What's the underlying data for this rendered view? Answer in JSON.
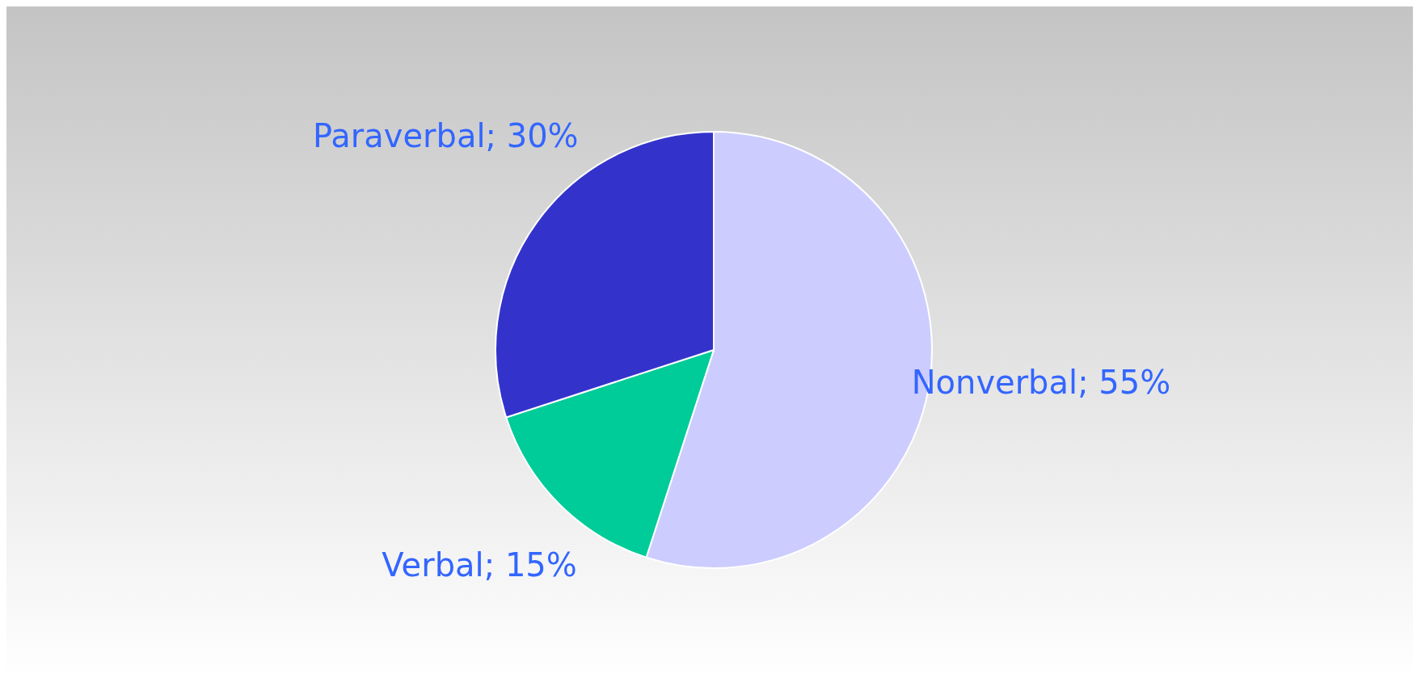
{
  "chart_data": {
    "type": "pie",
    "categories": [
      "Nonverbal",
      "Verbal",
      "Paraverbal"
    ],
    "values": [
      55,
      15,
      30
    ],
    "colors": [
      "#ccccff",
      "#00cc99",
      "#3333cc"
    ],
    "value_labels": [
      "55%",
      "15%",
      "30%"
    ],
    "legend": false
  }
}
